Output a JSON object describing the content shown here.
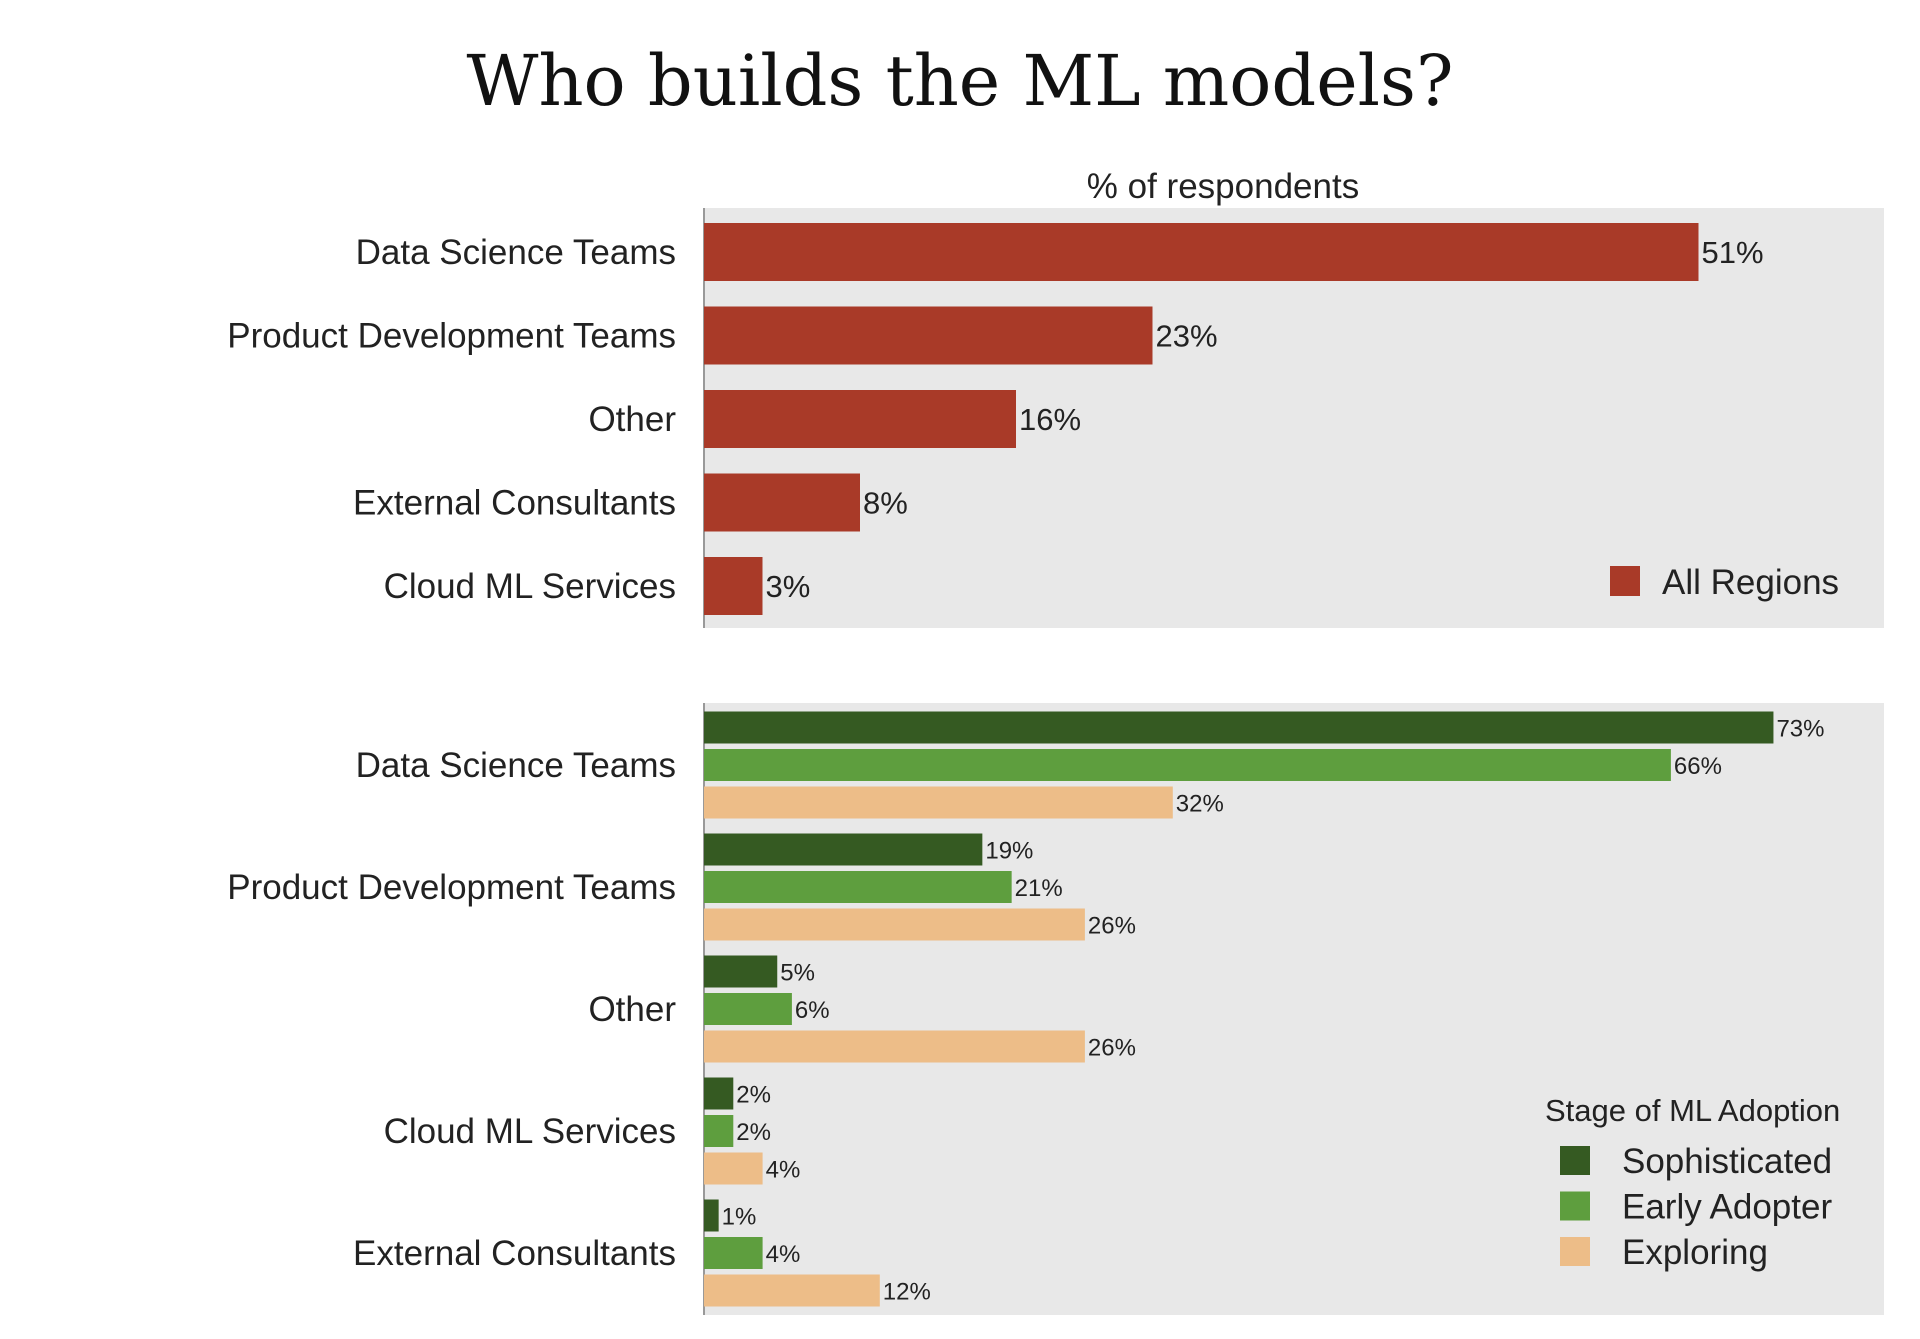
{
  "chart_data": [
    {
      "type": "bar",
      "orientation": "horizontal",
      "title": "Who builds the ML models?",
      "subtitle": "% of respondents",
      "categories": [
        "Data Science Teams",
        "Product Development Teams",
        "Other",
        "External Consultants",
        "Cloud ML Services"
      ],
      "series": [
        {
          "name": "All Regions",
          "color": "#a93a28",
          "values": [
            51,
            23,
            16,
            8,
            3
          ]
        }
      ],
      "value_labels": [
        "51%",
        "23%",
        "16%",
        "8%",
        "3%"
      ],
      "legend_placement": "bottom-right",
      "grid": false
    },
    {
      "type": "bar",
      "orientation": "horizontal",
      "categories": [
        "Data Science Teams",
        "Product Development Teams",
        "Other",
        "Cloud ML Services",
        "External Consultants"
      ],
      "legend_title": "Stage of ML Adoption",
      "series": [
        {
          "name": "Sophisticated",
          "color": "#355a22",
          "values": [
            73,
            19,
            5,
            2,
            1
          ]
        },
        {
          "name": "Early Adopter",
          "color": "#5e9e3e",
          "values": [
            66,
            21,
            6,
            2,
            4
          ]
        },
        {
          "name": "Exploring",
          "color": "#edbd88",
          "values": [
            32,
            26,
            26,
            4,
            12
          ]
        }
      ],
      "legend_placement": "bottom-right",
      "grid": false
    }
  ]
}
